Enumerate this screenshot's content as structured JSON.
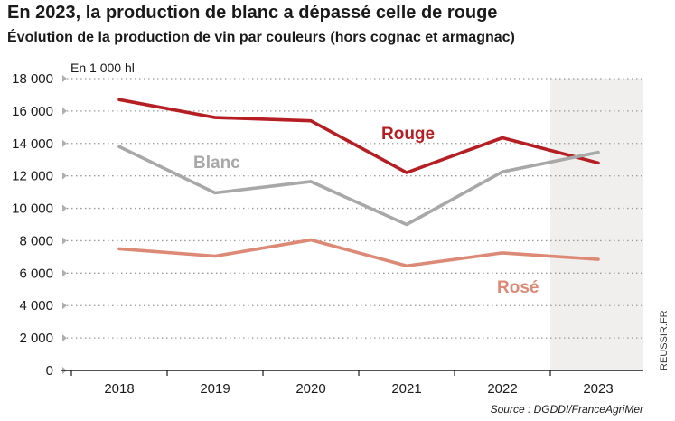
{
  "chart_data": {
    "type": "line",
    "title": "En 2023, la production de blanc a dépassé celle de rouge",
    "subtitle": "Évolution de la production de vin par couleurs (hors cognac et armagnac)",
    "unit_label": "En 1 000 hl",
    "x": [
      "2018",
      "2019",
      "2020",
      "2021",
      "2022",
      "2023"
    ],
    "ylim": [
      0,
      18000
    ],
    "yticks": [
      0,
      2000,
      4000,
      6000,
      8000,
      10000,
      12000,
      14000,
      16000,
      18000
    ],
    "ytick_labels": [
      "0",
      "2 000",
      "4 000",
      "6 000",
      "8 000",
      "10 000",
      "12 000",
      "14 000",
      "16 000",
      "18 000"
    ],
    "grid": true,
    "highlight_category": "2023",
    "series": [
      {
        "name": "Rouge",
        "color": "#b51f24",
        "values": [
          16700,
          15600,
          15400,
          12200,
          14350,
          12800
        ]
      },
      {
        "name": "Blanc",
        "color": "#a8a8a8",
        "values": [
          13800,
          10950,
          11650,
          9000,
          12250,
          13450
        ]
      },
      {
        "name": "Rosé",
        "color": "#dc8a76",
        "values": [
          7500,
          7050,
          8050,
          6450,
          7250,
          6850
        ]
      }
    ],
    "source": "Source : DGDDI/FranceAgriMer",
    "credit": "REUSSIR.FR"
  }
}
